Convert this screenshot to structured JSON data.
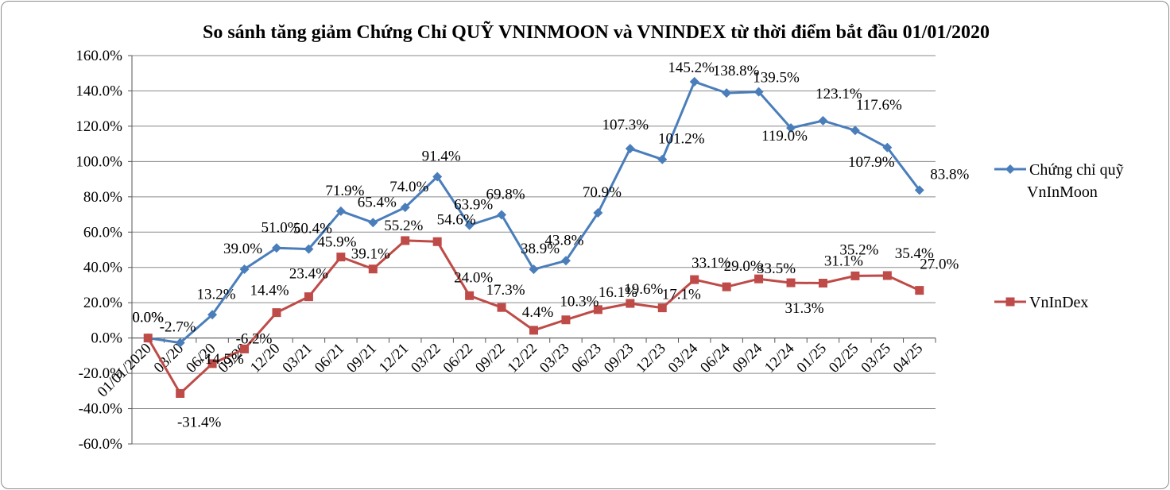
{
  "chart_data": {
    "type": "line",
    "title": "So sánh tăng giảm Chứng Chỉ QUỸ VNINMOON và VNINDEX từ thời điểm bắt đầu 01/01/2020",
    "xlabel": "",
    "ylabel": "",
    "ylim": [
      -60,
      160
    ],
    "ytick_step": 20,
    "grid": true,
    "legend_position": "right",
    "categories": [
      "01/01/2020",
      "03/20",
      "06/20",
      "09/20",
      "12/20",
      "03/21",
      "06/21",
      "09/21",
      "12/21",
      "03/22",
      "06/22",
      "09/22",
      "12/22",
      "03/23",
      "06/23",
      "09/23",
      "12/23",
      "03/24",
      "06/24",
      "09/24",
      "12/24",
      "01/25",
      "02/25",
      "03/25",
      "04/25"
    ],
    "series": [
      {
        "name": "Chứng chỉ quỹ VnInMoon",
        "legend_lines": [
          "Chứng chỉ quỹ",
          "VnInMoon"
        ],
        "color": "#4a7ebb",
        "marker": "diamond",
        "values": [
          0.0,
          -2.7,
          13.2,
          39.0,
          51.0,
          50.4,
          71.9,
          65.4,
          74.0,
          91.4,
          63.9,
          69.8,
          38.9,
          43.8,
          70.9,
          107.3,
          101.2,
          145.2,
          138.8,
          139.5,
          119.0,
          123.1,
          117.6,
          107.9,
          83.8
        ],
        "labels": [
          "0.0%",
          "-2.7%",
          "13.2%",
          "39.0%",
          "51.0%",
          "50.4%",
          "71.9%",
          "65.4%",
          "74.0%",
          "91.4%",
          "63.9%",
          "69.8%",
          "38.9%",
          "43.8%",
          "70.9%",
          "107.3%",
          "101.2%",
          "145.2%",
          "138.8%",
          "139.5%",
          "119.0%",
          "123.1%",
          "117.6%",
          "107.9%",
          "83.8%"
        ]
      },
      {
        "name": "VnInDex",
        "legend_lines": [
          "VnInDex"
        ],
        "color": "#be4b48",
        "marker": "square",
        "values": [
          0.0,
          -31.4,
          -14.5,
          -6.2,
          14.4,
          23.4,
          45.9,
          39.1,
          55.2,
          54.6,
          24.0,
          17.3,
          4.4,
          10.3,
          16.1,
          19.6,
          17.1,
          33.1,
          29.0,
          33.5,
          31.3,
          31.1,
          35.2,
          35.4,
          27.0
        ],
        "labels": [
          "0.0%",
          "-31.4%",
          "-14.5%",
          "-6.2%",
          "14.4%",
          "23.4%",
          "45.9%",
          "39.1%",
          "55.2%",
          "54.6%",
          "24.0%",
          "17.3%",
          "4.4%",
          "10.3%",
          "16.1%",
          "19.6%",
          "17.1%",
          "33.1%",
          "29.0%",
          "33.5%",
          "31.3%",
          "31.1%",
          "35.2%",
          "35.4%",
          "27.0%"
        ]
      }
    ]
  }
}
